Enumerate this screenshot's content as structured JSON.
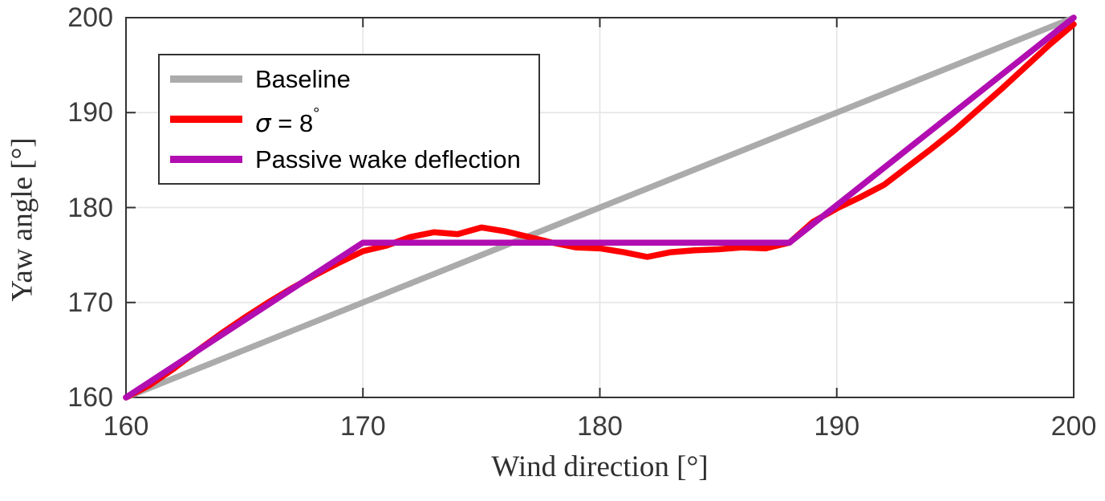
{
  "figure": {
    "background": "#ffffff",
    "axis_color": "#333333",
    "grid_color": "#e6e6e6",
    "tick_label_color": "#3c3c3c"
  },
  "chart_data": {
    "type": "line",
    "title": "",
    "xlabel": "Wind direction [°]",
    "ylabel": "Yaw angle [°]",
    "xlim": [
      160,
      200
    ],
    "ylim": [
      160,
      200
    ],
    "x_ticks": [
      "160",
      "170",
      "180",
      "190",
      "200"
    ],
    "y_ticks": [
      "160",
      "170",
      "180",
      "190",
      "200"
    ],
    "x_tick_values": [
      160,
      170,
      180,
      190,
      200
    ],
    "y_tick_values": [
      160,
      170,
      180,
      190,
      200
    ],
    "grid": true,
    "legend_position": "top-left",
    "series": [
      {
        "name": "Baseline",
        "color": "#ababab",
        "linewidth": 7.5,
        "x": [
          160,
          200
        ],
        "y": [
          160,
          200
        ]
      },
      {
        "name": "σ = 8°",
        "color": "#ff0000",
        "linewidth": 7.5,
        "x": [
          160,
          161,
          162,
          163,
          164,
          165,
          166,
          167,
          168,
          169,
          170,
          171,
          172,
          173,
          174,
          175,
          176,
          177,
          178,
          179,
          180,
          181,
          182,
          183,
          184,
          185,
          186,
          187,
          188,
          189,
          190,
          191,
          192,
          193,
          194,
          195,
          196,
          197,
          198,
          199,
          200
        ],
        "y": [
          160.0,
          161.3,
          163.0,
          164.9,
          166.7,
          168.4,
          170.0,
          171.5,
          172.9,
          174.2,
          175.4,
          176.0,
          176.9,
          177.4,
          177.2,
          177.9,
          177.5,
          176.9,
          176.3,
          175.8,
          175.7,
          175.3,
          174.8,
          175.3,
          175.5,
          175.6,
          175.8,
          175.7,
          176.3,
          178.5,
          179.9,
          181.1,
          182.4,
          184.3,
          186.2,
          188.2,
          190.4,
          192.6,
          194.9,
          197.2,
          199.3
        ]
      },
      {
        "name": "Passive wake deflection",
        "color": "#b10db1",
        "linewidth": 7.5,
        "x": [
          160,
          170,
          188,
          200
        ],
        "y": [
          160,
          176.3,
          176.3,
          200
        ]
      }
    ]
  },
  "legend": {
    "items": [
      {
        "label": "Baseline"
      },
      {
        "label": "σ = 8°",
        "parts": {
          "sigma": "σ",
          "eq": " = 8",
          "deg": "°"
        }
      },
      {
        "label": "Passive wake deflection"
      }
    ]
  }
}
